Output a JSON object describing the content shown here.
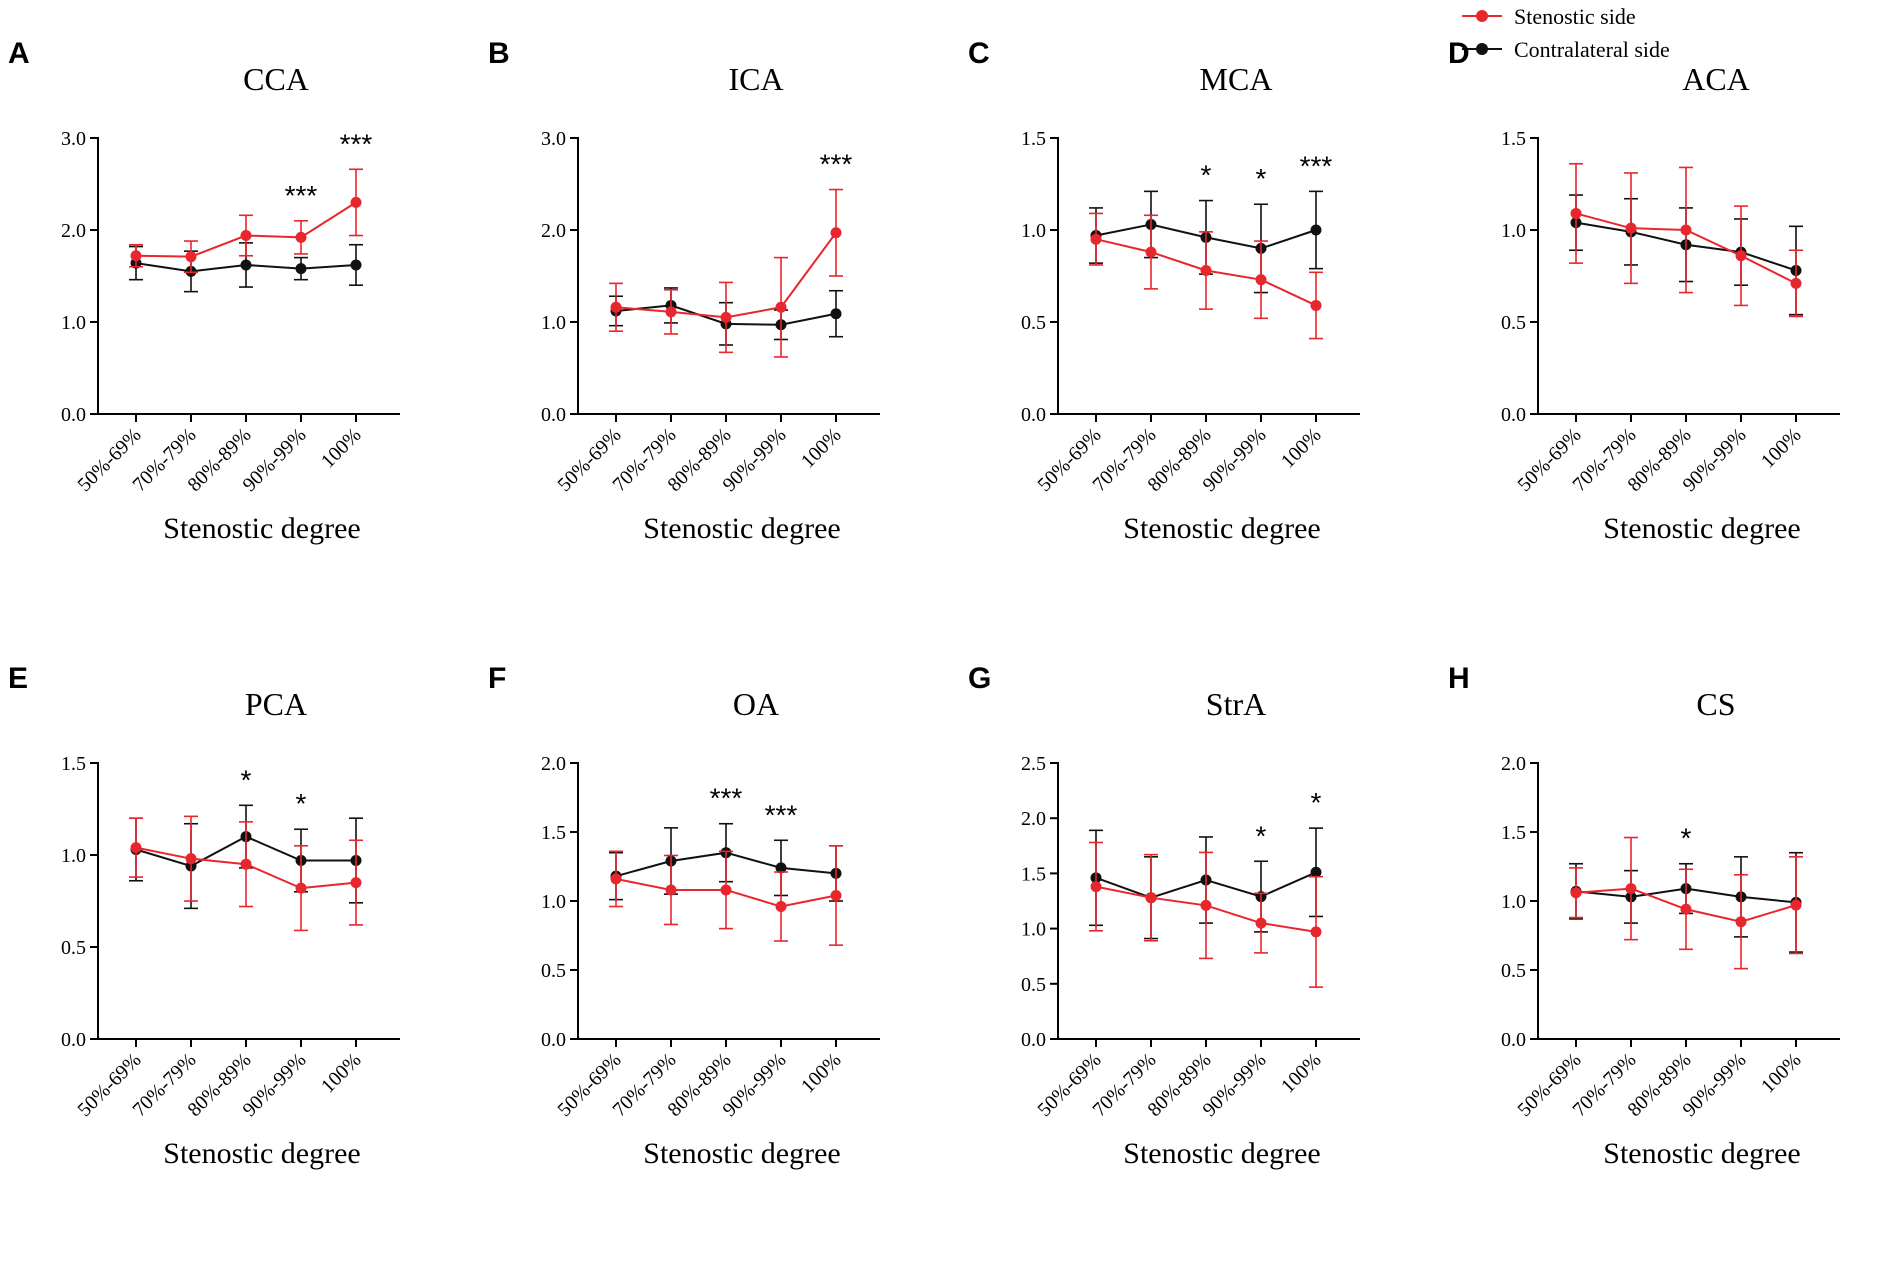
{
  "legend": {
    "stenotic_label": "Stenostic side",
    "contralateral_label": "Contralateral side"
  },
  "colors": {
    "stenotic": "#e8262d",
    "contralateral": "#111111"
  },
  "chart_data": [
    {
      "letter": "A",
      "title": "CCA",
      "type": "line",
      "xlabel": "Stenostic degree",
      "ylabel": "",
      "categories": [
        "50%-69%",
        "70%-79%",
        "80%-89%",
        "90%-99%",
        "100%"
      ],
      "ylim": [
        0,
        3
      ],
      "yticks": [
        "0.0",
        "1.0",
        "2.0",
        "3.0"
      ],
      "series": [
        {
          "name": "Contralateral side",
          "values": [
            1.64,
            1.55,
            1.62,
            1.58,
            1.62
          ],
          "err": [
            0.18,
            0.22,
            0.24,
            0.12,
            0.22
          ]
        },
        {
          "name": "Stenostic side",
          "values": [
            1.72,
            1.71,
            1.94,
            1.92,
            2.3
          ],
          "err": [
            0.12,
            0.17,
            0.22,
            0.18,
            0.36
          ]
        }
      ],
      "significance": [
        "",
        "",
        "",
        "***",
        "***"
      ]
    },
    {
      "letter": "B",
      "title": "ICA",
      "type": "line",
      "xlabel": "Stenostic degree",
      "ylabel": "",
      "categories": [
        "50%-69%",
        "70%-79%",
        "80%-89%",
        "90%-99%",
        "100%"
      ],
      "ylim": [
        0,
        3
      ],
      "yticks": [
        "0.0",
        "1.0",
        "2.0",
        "3.0"
      ],
      "series": [
        {
          "name": "Contralateral side",
          "values": [
            1.12,
            1.18,
            0.98,
            0.97,
            1.09
          ],
          "err": [
            0.16,
            0.19,
            0.23,
            0.16,
            0.25
          ]
        },
        {
          "name": "Stenostic side",
          "values": [
            1.16,
            1.11,
            1.05,
            1.16,
            1.97
          ],
          "err": [
            0.26,
            0.24,
            0.38,
            0.54,
            0.47
          ]
        }
      ],
      "significance": [
        "",
        "",
        "",
        "",
        "***"
      ]
    },
    {
      "letter": "C",
      "title": "MCA",
      "type": "line",
      "xlabel": "Stenostic degree",
      "ylabel": "",
      "categories": [
        "50%-69%",
        "70%-79%",
        "80%-89%",
        "90%-99%",
        "100%"
      ],
      "ylim": [
        0,
        1.5
      ],
      "yticks": [
        "0.0",
        "0.5",
        "1.0",
        "1.5"
      ],
      "series": [
        {
          "name": "Contralateral side",
          "values": [
            0.97,
            1.03,
            0.96,
            0.9,
            1.0
          ],
          "err": [
            0.15,
            0.18,
            0.2,
            0.24,
            0.21
          ]
        },
        {
          "name": "Stenostic side",
          "values": [
            0.95,
            0.88,
            0.78,
            0.73,
            0.59
          ],
          "err": [
            0.14,
            0.2,
            0.21,
            0.21,
            0.18
          ]
        }
      ],
      "significance": [
        "",
        "",
        "*",
        "*",
        "***"
      ]
    },
    {
      "letter": "D",
      "title": "ACA",
      "type": "line",
      "xlabel": "Stenostic degree",
      "ylabel": "",
      "categories": [
        "50%-69%",
        "70%-79%",
        "80%-89%",
        "90%-99%",
        "100%"
      ],
      "ylim": [
        0,
        1.5
      ],
      "yticks": [
        "0.0",
        "0.5",
        "1.0",
        "1.5"
      ],
      "series": [
        {
          "name": "Contralateral side",
          "values": [
            1.04,
            0.99,
            0.92,
            0.88,
            0.78
          ],
          "err": [
            0.15,
            0.18,
            0.2,
            0.18,
            0.24
          ]
        },
        {
          "name": "Stenostic side",
          "values": [
            1.09,
            1.01,
            1.0,
            0.86,
            0.71
          ],
          "err": [
            0.27,
            0.3,
            0.34,
            0.27,
            0.18
          ]
        }
      ],
      "significance": [
        "",
        "",
        "",
        "",
        ""
      ]
    },
    {
      "letter": "E",
      "title": "PCA",
      "type": "line",
      "xlabel": "Stenostic degree",
      "ylabel": "",
      "categories": [
        "50%-69%",
        "70%-79%",
        "80%-89%",
        "90%-99%",
        "100%"
      ],
      "ylim": [
        0,
        1.5
      ],
      "yticks": [
        "0.0",
        "0.5",
        "1.0",
        "1.5"
      ],
      "series": [
        {
          "name": "Contralateral side",
          "values": [
            1.03,
            0.94,
            1.1,
            0.97,
            0.97
          ],
          "err": [
            0.17,
            0.23,
            0.17,
            0.17,
            0.23
          ]
        },
        {
          "name": "Stenostic side",
          "values": [
            1.04,
            0.98,
            0.95,
            0.82,
            0.85
          ],
          "err": [
            0.16,
            0.23,
            0.23,
            0.23,
            0.23
          ]
        }
      ],
      "significance": [
        "",
        "",
        "*",
        "*",
        ""
      ]
    },
    {
      "letter": "F",
      "title": "OA",
      "type": "line",
      "xlabel": "Stenostic degree",
      "ylabel": "",
      "categories": [
        "50%-69%",
        "70%-79%",
        "80%-89%",
        "90%-99%",
        "100%"
      ],
      "ylim": [
        0,
        2
      ],
      "yticks": [
        "0.0",
        "0.5",
        "1.0",
        "1.5",
        "2.0"
      ],
      "series": [
        {
          "name": "Contralateral side",
          "values": [
            1.18,
            1.29,
            1.35,
            1.24,
            1.2
          ],
          "err": [
            0.17,
            0.24,
            0.21,
            0.2,
            0.2
          ]
        },
        {
          "name": "Stenostic side",
          "values": [
            1.16,
            1.08,
            1.08,
            0.96,
            1.04
          ],
          "err": [
            0.2,
            0.25,
            0.28,
            0.25,
            0.36
          ]
        }
      ],
      "significance": [
        "",
        "",
        "***",
        "***",
        ""
      ]
    },
    {
      "letter": "G",
      "title": "StrA",
      "type": "line",
      "xlabel": "Stenostic degree",
      "ylabel": "",
      "categories": [
        "50%-69%",
        "70%-79%",
        "80%-89%",
        "90%-99%",
        "100%"
      ],
      "ylim": [
        0,
        2.5
      ],
      "yticks": [
        "0.0",
        "0.5",
        "1.0",
        "1.5",
        "2.0",
        "2.5"
      ],
      "series": [
        {
          "name": "Contralateral side",
          "values": [
            1.46,
            1.28,
            1.44,
            1.29,
            1.51
          ],
          "err": [
            0.43,
            0.37,
            0.39,
            0.32,
            0.4
          ]
        },
        {
          "name": "Stenostic side",
          "values": [
            1.38,
            1.28,
            1.21,
            1.05,
            0.97
          ],
          "err": [
            0.4,
            0.39,
            0.48,
            0.27,
            0.5
          ]
        }
      ],
      "significance": [
        "",
        "",
        "",
        "*",
        "*"
      ]
    },
    {
      "letter": "H",
      "title": "CS",
      "type": "line",
      "xlabel": "Stenostic degree",
      "ylabel": "",
      "categories": [
        "50%-69%",
        "70%-79%",
        "80%-89%",
        "90%-99%",
        "100%"
      ],
      "ylim": [
        0,
        2
      ],
      "yticks": [
        "0.0",
        "0.5",
        "1.0",
        "1.5",
        "2.0"
      ],
      "series": [
        {
          "name": "Contralateral side",
          "values": [
            1.07,
            1.03,
            1.09,
            1.03,
            0.99
          ],
          "err": [
            0.2,
            0.19,
            0.18,
            0.29,
            0.36
          ]
        },
        {
          "name": "Stenostic side",
          "values": [
            1.06,
            1.09,
            0.94,
            0.85,
            0.97
          ],
          "err": [
            0.18,
            0.37,
            0.29,
            0.34,
            0.35
          ]
        }
      ],
      "significance": [
        "",
        "",
        "*",
        "",
        ""
      ]
    }
  ]
}
